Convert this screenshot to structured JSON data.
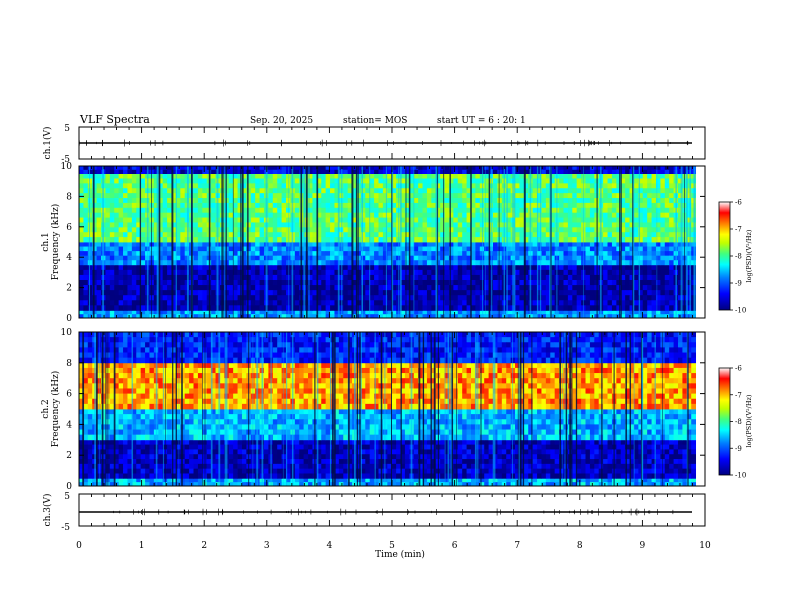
{
  "header": {
    "title": "VLF Spectra",
    "date": "Sep. 20, 2025",
    "station": "station= MOS",
    "start_ut": "start UT =  6 : 20: 1"
  },
  "colors": {
    "colormap": [
      "#00007f",
      "#0000ff",
      "#0080ff",
      "#00ffff",
      "#80ff80",
      "#ffff00",
      "#ff8000",
      "#ff0000",
      "#ffffff"
    ],
    "axis": "#000000",
    "background": "#ffffff"
  },
  "chart_data": [
    {
      "type": "line",
      "id": "ch1-waveform",
      "ylabel": "ch.1(V)",
      "ylim": [
        -5,
        5
      ],
      "yticks": [
        "5",
        "-5"
      ],
      "x": [
        0,
        10
      ],
      "values": [
        0,
        0
      ]
    },
    {
      "type": "heatmap",
      "id": "ch1-spectrogram",
      "ylabel": "ch.1\nFrequency (kHz)",
      "ylim": [
        0,
        10
      ],
      "yticks": [
        "0",
        "2",
        "4",
        "6",
        "8",
        "10"
      ],
      "xlim": [
        0,
        10
      ],
      "colorbar": {
        "label": "log(PSD)(V²/Hz)",
        "range": [
          -10,
          -6
        ],
        "ticks": [
          "-6",
          "-7",
          "-8",
          "-9",
          "-10"
        ]
      },
      "bands": [
        {
          "f_range": [
            0,
            0.5
          ],
          "log_psd": -8.7
        },
        {
          "f_range": [
            0.5,
            3.5
          ],
          "log_psd": -9.8
        },
        {
          "f_range": [
            3.5,
            5.0
          ],
          "log_psd": -8.8
        },
        {
          "f_range": [
            5.0,
            9.5
          ],
          "log_psd": -7.9
        },
        {
          "f_range": [
            9.5,
            10
          ],
          "log_psd": -9.6
        }
      ]
    },
    {
      "type": "heatmap",
      "id": "ch2-spectrogram",
      "ylabel": "ch.2\nFrequency (kHz)",
      "ylim": [
        0,
        10
      ],
      "yticks": [
        "0",
        "2",
        "4",
        "6",
        "8",
        "10"
      ],
      "xlim": [
        0,
        10
      ],
      "colorbar": {
        "label": "log(PSD)(V²/Hz)",
        "range": [
          -10,
          -6
        ],
        "ticks": [
          "-6",
          "-7",
          "-8",
          "-9",
          "-10"
        ]
      },
      "bands": [
        {
          "f_range": [
            0,
            0.5
          ],
          "log_psd": -8.6
        },
        {
          "f_range": [
            0.5,
            3.0
          ],
          "log_psd": -9.7
        },
        {
          "f_range": [
            3.0,
            5.0
          ],
          "log_psd": -8.6
        },
        {
          "f_range": [
            5.0,
            8.0
          ],
          "log_psd": -6.9
        },
        {
          "f_range": [
            8.0,
            10
          ],
          "log_psd": -9.3
        }
      ]
    },
    {
      "type": "line",
      "id": "ch3-waveform",
      "ylabel": "ch.3(V)",
      "ylim": [
        -5,
        5
      ],
      "yticks": [
        "5",
        "-5"
      ],
      "x": [
        0,
        10
      ],
      "values": [
        0,
        0
      ]
    }
  ],
  "x_axis": {
    "label": "Time (min)",
    "ticks": [
      "0",
      "1",
      "2",
      "3",
      "4",
      "5",
      "6",
      "7",
      "8",
      "9",
      "10"
    ],
    "range": [
      0,
      10
    ]
  }
}
